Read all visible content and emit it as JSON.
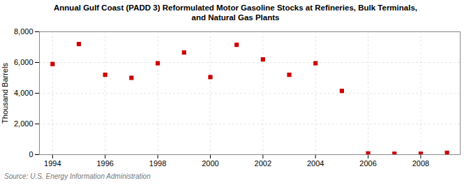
{
  "chart_data": {
    "type": "scatter",
    "title": "Annual Gulf Coast (PADD 3) Reformulated Motor Gasoline Stocks at Refineries, Bulk Terminals,\nand Natural Gas Plants",
    "ylabel": "Thousand Barrels",
    "source": "Source: U.S. Energy Information Administration",
    "x": [
      1994,
      1995,
      1996,
      1997,
      1998,
      1999,
      2000,
      2001,
      2002,
      2003,
      2004,
      2005,
      2006,
      2007,
      2008,
      2009
    ],
    "values": [
      5900,
      7200,
      5200,
      5000,
      5950,
      6650,
      5050,
      7150,
      6200,
      5200,
      5950,
      4150,
      80,
      60,
      60,
      120
    ],
    "color": "#cc0000",
    "marker": "square",
    "grid": true,
    "xlim": [
      1993.5,
      2009.5
    ],
    "xticks": [
      1994,
      1996,
      1998,
      2000,
      2002,
      2004,
      2006,
      2008
    ],
    "ylim": [
      0,
      8000
    ],
    "yticks": [
      0,
      {
        "value": 2000,
        "label": "2,000"
      },
      {
        "value": 4000,
        "label": "4,000"
      },
      {
        "value": 6000,
        "label": "6,000"
      },
      {
        "value": 8000,
        "label": "8,000"
      }
    ]
  }
}
